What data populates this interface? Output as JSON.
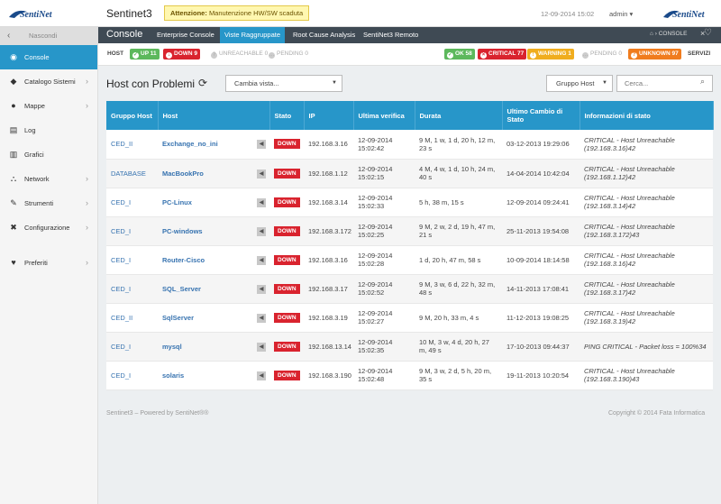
{
  "topbar": {
    "app_title": "Sentinet3",
    "alert_label": "Attenzione:",
    "alert_text": "Manutenzione HW/SW scaduta",
    "datetime": "12-09-2014 15:02",
    "user": "admin",
    "logo_left": "SentiNet",
    "logo_right": "SentiNet"
  },
  "sidebar": {
    "hide_label": "Nascondi",
    "items": [
      {
        "label": "Console",
        "icon": "broadcast-icon",
        "active": true,
        "arrow": false
      },
      {
        "label": "Catalogo Sistemi",
        "icon": "tag-icon",
        "active": false,
        "arrow": true
      },
      {
        "label": "Mappe",
        "icon": "globe-icon",
        "active": false,
        "arrow": true
      },
      {
        "label": "Log",
        "icon": "log-icon",
        "active": false,
        "arrow": false
      },
      {
        "label": "Grafici",
        "icon": "chart-icon",
        "active": false,
        "arrow": false
      },
      {
        "label": "Network",
        "icon": "network-icon",
        "active": false,
        "arrow": true
      },
      {
        "label": "Strumenti",
        "icon": "wrench-icon",
        "active": false,
        "arrow": true
      },
      {
        "label": "Configurazione",
        "icon": "tools-icon",
        "active": false,
        "arrow": true
      },
      {
        "label": "Preferiti",
        "icon": "heart-icon",
        "active": false,
        "arrow": true
      }
    ]
  },
  "navbar": {
    "section": "Console",
    "tabs": [
      "Enterprise Console",
      "Viste Raggruppate",
      "Root Cause Analysis",
      "SentiNet3 Remoto"
    ],
    "active_tab": 1,
    "breadcrumb": "CONSOLE"
  },
  "statusbar": {
    "host_label": "HOST",
    "servizi_label": "SERVIZI",
    "host": [
      {
        "label": "UP 11",
        "color": "#5cb85c",
        "glyph": "✓"
      },
      {
        "label": "DOWN 9",
        "color": "#d9232e",
        "glyph": "↓"
      },
      {
        "label": "UNREACHABLE 0",
        "color": "",
        "glyph": "?"
      },
      {
        "label": "PENDING 0",
        "color": "",
        "glyph": "…"
      }
    ],
    "services": [
      {
        "label": "OK 58",
        "color": "#5cb85c",
        "glyph": "✓"
      },
      {
        "label": "CRITICAL 77",
        "color": "#d9232e",
        "glyph": "×"
      },
      {
        "label": "WARNING 1",
        "color": "#f0ad1e",
        "glyph": "!"
      },
      {
        "label": "PENDING 0",
        "color": "",
        "glyph": "…"
      },
      {
        "label": "UNKNOWN 97",
        "color": "#f07c1e",
        "glyph": "?"
      }
    ]
  },
  "main": {
    "heading": "Host con Problemi",
    "view_select": "Cambia vista...",
    "group_select": "Gruppo Host",
    "search_placeholder": "Cerca..."
  },
  "table": {
    "headers": [
      "Gruppo Host",
      "Host",
      "Stato",
      "IP",
      "Ultima verifica",
      "Durata",
      "Ultimo Cambio di Stato",
      "Informazioni di stato"
    ],
    "rows": [
      {
        "group": "CED_II",
        "host": "Exchange_no_ini",
        "state": "DOWN",
        "ip": "192.168.3.16",
        "check": "12-09-2014 15:02:42",
        "duration": "9 M, 1 w, 1 d, 20 h, 12 m, 23 s",
        "change": "03-12-2013 19:29:06",
        "info": "CRITICAL - Host Unreachable (192.168.3.16)42"
      },
      {
        "group": "DATABASE",
        "host": "MacBookPro",
        "state": "DOWN",
        "ip": "192.168.1.12",
        "check": "12-09-2014 15:02:15",
        "duration": "4 M, 4 w, 1 d, 10 h, 24 m, 40 s",
        "change": "14-04-2014 10:42:04",
        "info": "CRITICAL - Host Unreachable (192.168.1.12)42"
      },
      {
        "group": "CED_I",
        "host": "PC-Linux",
        "state": "DOWN",
        "ip": "192.168.3.14",
        "check": "12-09-2014 15:02:33",
        "duration": "5 h, 38 m, 15 s",
        "change": "12-09-2014 09:24:41",
        "info": "CRITICAL - Host Unreachable (192.168.3.14)42"
      },
      {
        "group": "CED_I",
        "host": "PC-windows",
        "state": "DOWN",
        "ip": "192.168.3.172",
        "check": "12-09-2014 15:02:25",
        "duration": "9 M, 2 w, 2 d, 19 h, 47 m, 21 s",
        "change": "25-11-2013 19:54:08",
        "info": "CRITICAL - Host Unreachable (192.168.3.172)43"
      },
      {
        "group": "CED_I",
        "host": "Router-Cisco",
        "state": "DOWN",
        "ip": "192.168.3.16",
        "check": "12-09-2014 15:02:28",
        "duration": "1 d, 20 h, 47 m, 58 s",
        "change": "10-09-2014 18:14:58",
        "info": "CRITICAL - Host Unreachable (192.168.3.16)42"
      },
      {
        "group": "CED_I",
        "host": "SQL_Server",
        "state": "DOWN",
        "ip": "192.168.3.17",
        "check": "12-09-2014 15:02:52",
        "duration": "9 M, 3 w, 6 d, 22 h, 32 m, 48 s",
        "change": "14-11-2013 17:08:41",
        "info": "CRITICAL - Host Unreachable (192.168.3.17)42"
      },
      {
        "group": "CED_II",
        "host": "SqlServer",
        "state": "DOWN",
        "ip": "192.168.3.19",
        "check": "12-09-2014 15:02:27",
        "duration": "9 M, 20 h, 33 m, 4 s",
        "change": "11-12-2013 19:08:25",
        "info": "CRITICAL - Host Unreachable (192.168.3.19)42"
      },
      {
        "group": "CED_I",
        "host": "mysql",
        "state": "DOWN",
        "ip": "192.168.13.14",
        "check": "12-09-2014 15:02:35",
        "duration": "10 M, 3 w, 4 d, 20 h, 27 m, 49 s",
        "change": "17-10-2013 09:44:37",
        "info": "PING CRITICAL - Packet loss = 100%34"
      },
      {
        "group": "CED_I",
        "host": "solaris",
        "state": "DOWN",
        "ip": "192.168.3.190",
        "check": "12-09-2014 15:02:48",
        "duration": "9 M, 3 w, 2 d, 5 h, 20 m, 35 s",
        "change": "19-11-2013 10:20:54",
        "info": "CRITICAL - Host Unreachable (192.168.3.190)43"
      }
    ]
  },
  "footer": {
    "left": "Sentinet3 – Powered by SentiNet®®",
    "right": "Copyright © 2014 Fata Informatica"
  }
}
